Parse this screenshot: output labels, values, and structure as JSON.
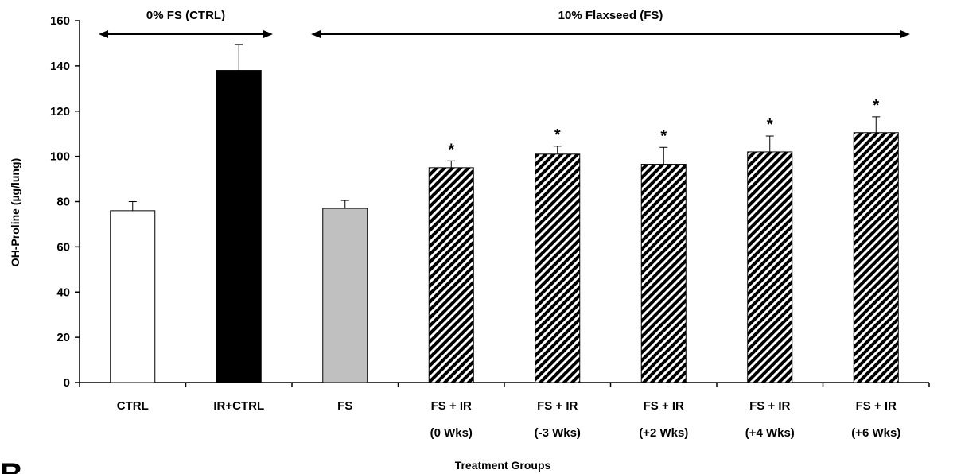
{
  "chart_data": {
    "type": "bar",
    "xlabel": "Treatment Groups",
    "ylabel": "OH-Proline (µg/lung)",
    "ylim": [
      0,
      160
    ],
    "yticks": [
      0,
      20,
      40,
      60,
      80,
      100,
      120,
      140,
      160
    ],
    "categories": [
      {
        "line1": "CTRL",
        "line2": ""
      },
      {
        "line1": "IR+CTRL",
        "line2": ""
      },
      {
        "line1": "FS",
        "line2": ""
      },
      {
        "line1": "FS + IR",
        "line2": "(0 Wks)"
      },
      {
        "line1": "FS + IR",
        "line2": "(-3 Wks)"
      },
      {
        "line1": "FS + IR",
        "line2": "(+2 Wks)"
      },
      {
        "line1": "FS + IR",
        "line2": "(+4 Wks)"
      },
      {
        "line1": "FS + IR",
        "line2": "(+6 Wks)"
      }
    ],
    "values": [
      76,
      138,
      77,
      95,
      101,
      96.5,
      102,
      110.5
    ],
    "errors": [
      4,
      11.5,
      3.5,
      3,
      3.5,
      7.5,
      7,
      7
    ],
    "fills": [
      "white",
      "black",
      "gray",
      "hatch",
      "hatch",
      "hatch",
      "hatch",
      "hatch"
    ],
    "significant": [
      false,
      false,
      false,
      true,
      true,
      true,
      true,
      true
    ],
    "significance_marker": "*",
    "colors": {
      "gray": "#c0c0c0",
      "black": "#000000",
      "white": "#ffffff"
    },
    "grid": false,
    "group_annotations": [
      {
        "label": "0% FS (CTRL)",
        "from_category": 0,
        "to_category": 1
      },
      {
        "label": "10% Flaxseed (FS)",
        "from_category": 2,
        "to_category": 7
      }
    ],
    "panel_letter": "B"
  }
}
